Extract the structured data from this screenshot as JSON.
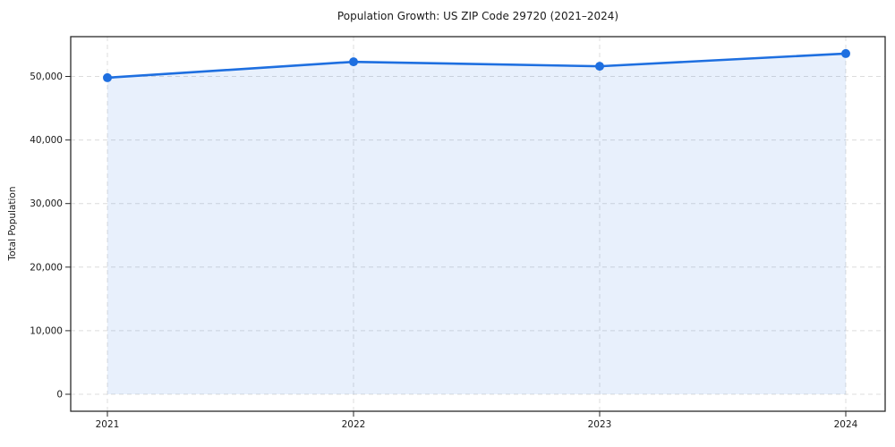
{
  "chart_data": {
    "type": "area",
    "title": "Population Growth: US ZIP Code 29720 (2021–2024)",
    "xlabel": "",
    "ylabel": "Total Population",
    "categories": [
      "2021",
      "2022",
      "2023",
      "2024"
    ],
    "series": [
      {
        "name": "Total Population",
        "values": [
          49800,
          52300,
          51600,
          53600
        ]
      }
    ],
    "ytick_values": [
      0,
      10000,
      20000,
      30000,
      40000,
      50000
    ],
    "ytick_labels": [
      "0",
      "10,000",
      "20,000",
      "30,000",
      "40,000",
      "50,000"
    ],
    "ylim": [
      0,
      56000
    ],
    "grid": "both-axes-dashed",
    "legend": "none",
    "marker": "circle",
    "colors": {
      "line": "#1e6fe0",
      "marker": "#1e6fe0",
      "area_fill": "rgba(30,111,224,0.10)",
      "grid": "#dcdcdc",
      "frame": "#2a2a2a",
      "tick": "#2a2a2a",
      "text": "#1a1a1a",
      "background": "#ffffff"
    }
  }
}
